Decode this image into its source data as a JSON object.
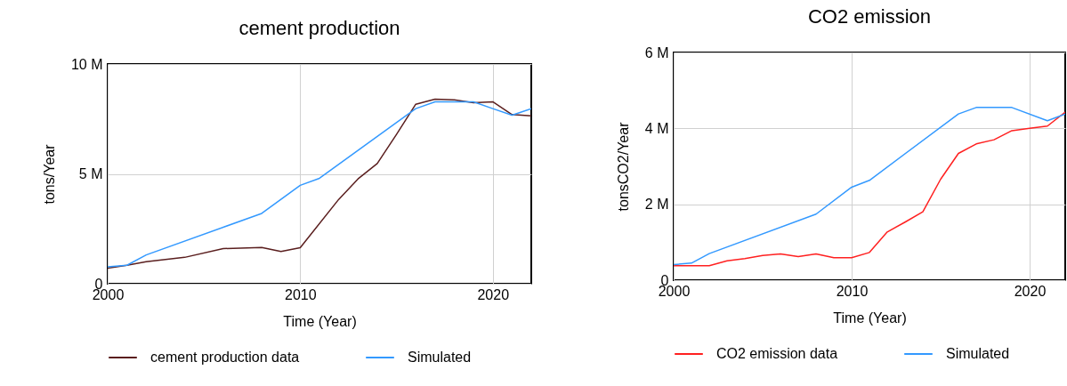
{
  "chart_data": [
    {
      "type": "line",
      "title": "cement production",
      "xlabel": "Time (Year)",
      "ylabel": "tons/Year",
      "xlim": [
        2000,
        2022
      ],
      "xticks": [
        2000,
        2010,
        2020
      ],
      "ylim": [
        0,
        10
      ],
      "yticks": [
        0,
        {
          "value": 5,
          "label": "5 M"
        },
        {
          "value": 10,
          "label": "10 M"
        }
      ],
      "grid": true,
      "legend": "bottom",
      "series": [
        {
          "name": "cement production data",
          "color": "#5a1e1e",
          "x": [
            2000,
            2001,
            2002,
            2004,
            2006,
            2008,
            2009,
            2010,
            2012,
            2013,
            2014,
            2015,
            2016,
            2017,
            2018,
            2019,
            2020,
            2021,
            2022
          ],
          "values": [
            0.71,
            0.84,
            1.0,
            1.2,
            1.6,
            1.65,
            1.47,
            1.64,
            3.84,
            4.77,
            5.47,
            6.8,
            8.17,
            8.4,
            8.37,
            8.24,
            8.28,
            7.7,
            7.64
          ]
        },
        {
          "name": "Simulated",
          "color": "#3399ff",
          "x": [
            2000,
            2001,
            2002,
            2008,
            2010,
            2011,
            2016,
            2017,
            2019,
            2020,
            2021,
            2022
          ],
          "values": [
            0.77,
            0.84,
            1.31,
            3.2,
            4.48,
            4.8,
            7.97,
            8.28,
            8.28,
            7.97,
            7.67,
            7.97
          ]
        }
      ]
    },
    {
      "type": "line",
      "title": "CO2 emission",
      "xlabel": "Time (Year)",
      "ylabel": "tonsCO2/Year",
      "xlim": [
        2000,
        2022
      ],
      "xticks": [
        2000,
        2010,
        2020
      ],
      "ylim": [
        0,
        6
      ],
      "yticks": [
        0,
        {
          "value": 2,
          "label": "2 M"
        },
        {
          "value": 4,
          "label": "4 M"
        },
        {
          "value": 6,
          "label": "6 M"
        }
      ],
      "grid": true,
      "legend": "bottom",
      "series": [
        {
          "name": "CO2 emission data",
          "color": "#ff2020",
          "x": [
            2000,
            2001,
            2002,
            2003,
            2004,
            2005,
            2006,
            2007,
            2008,
            2009,
            2010,
            2011,
            2012,
            2013,
            2014,
            2015,
            2016,
            2017,
            2018,
            2019,
            2020,
            2021,
            2022
          ],
          "values": [
            0.38,
            0.38,
            0.38,
            0.51,
            0.57,
            0.65,
            0.69,
            0.62,
            0.69,
            0.59,
            0.59,
            0.73,
            1.27,
            1.53,
            1.8,
            2.66,
            3.34,
            3.59,
            3.7,
            3.94,
            4.0,
            4.06,
            4.43
          ]
        },
        {
          "name": "Simulated",
          "color": "#3399ff",
          "x": [
            2000,
            2001,
            2002,
            2008,
            2010,
            2011,
            2016,
            2017,
            2019,
            2021,
            2022
          ],
          "values": [
            0.41,
            0.45,
            0.7,
            1.74,
            2.45,
            2.63,
            4.38,
            4.55,
            4.55,
            4.2,
            4.38
          ]
        }
      ]
    }
  ]
}
